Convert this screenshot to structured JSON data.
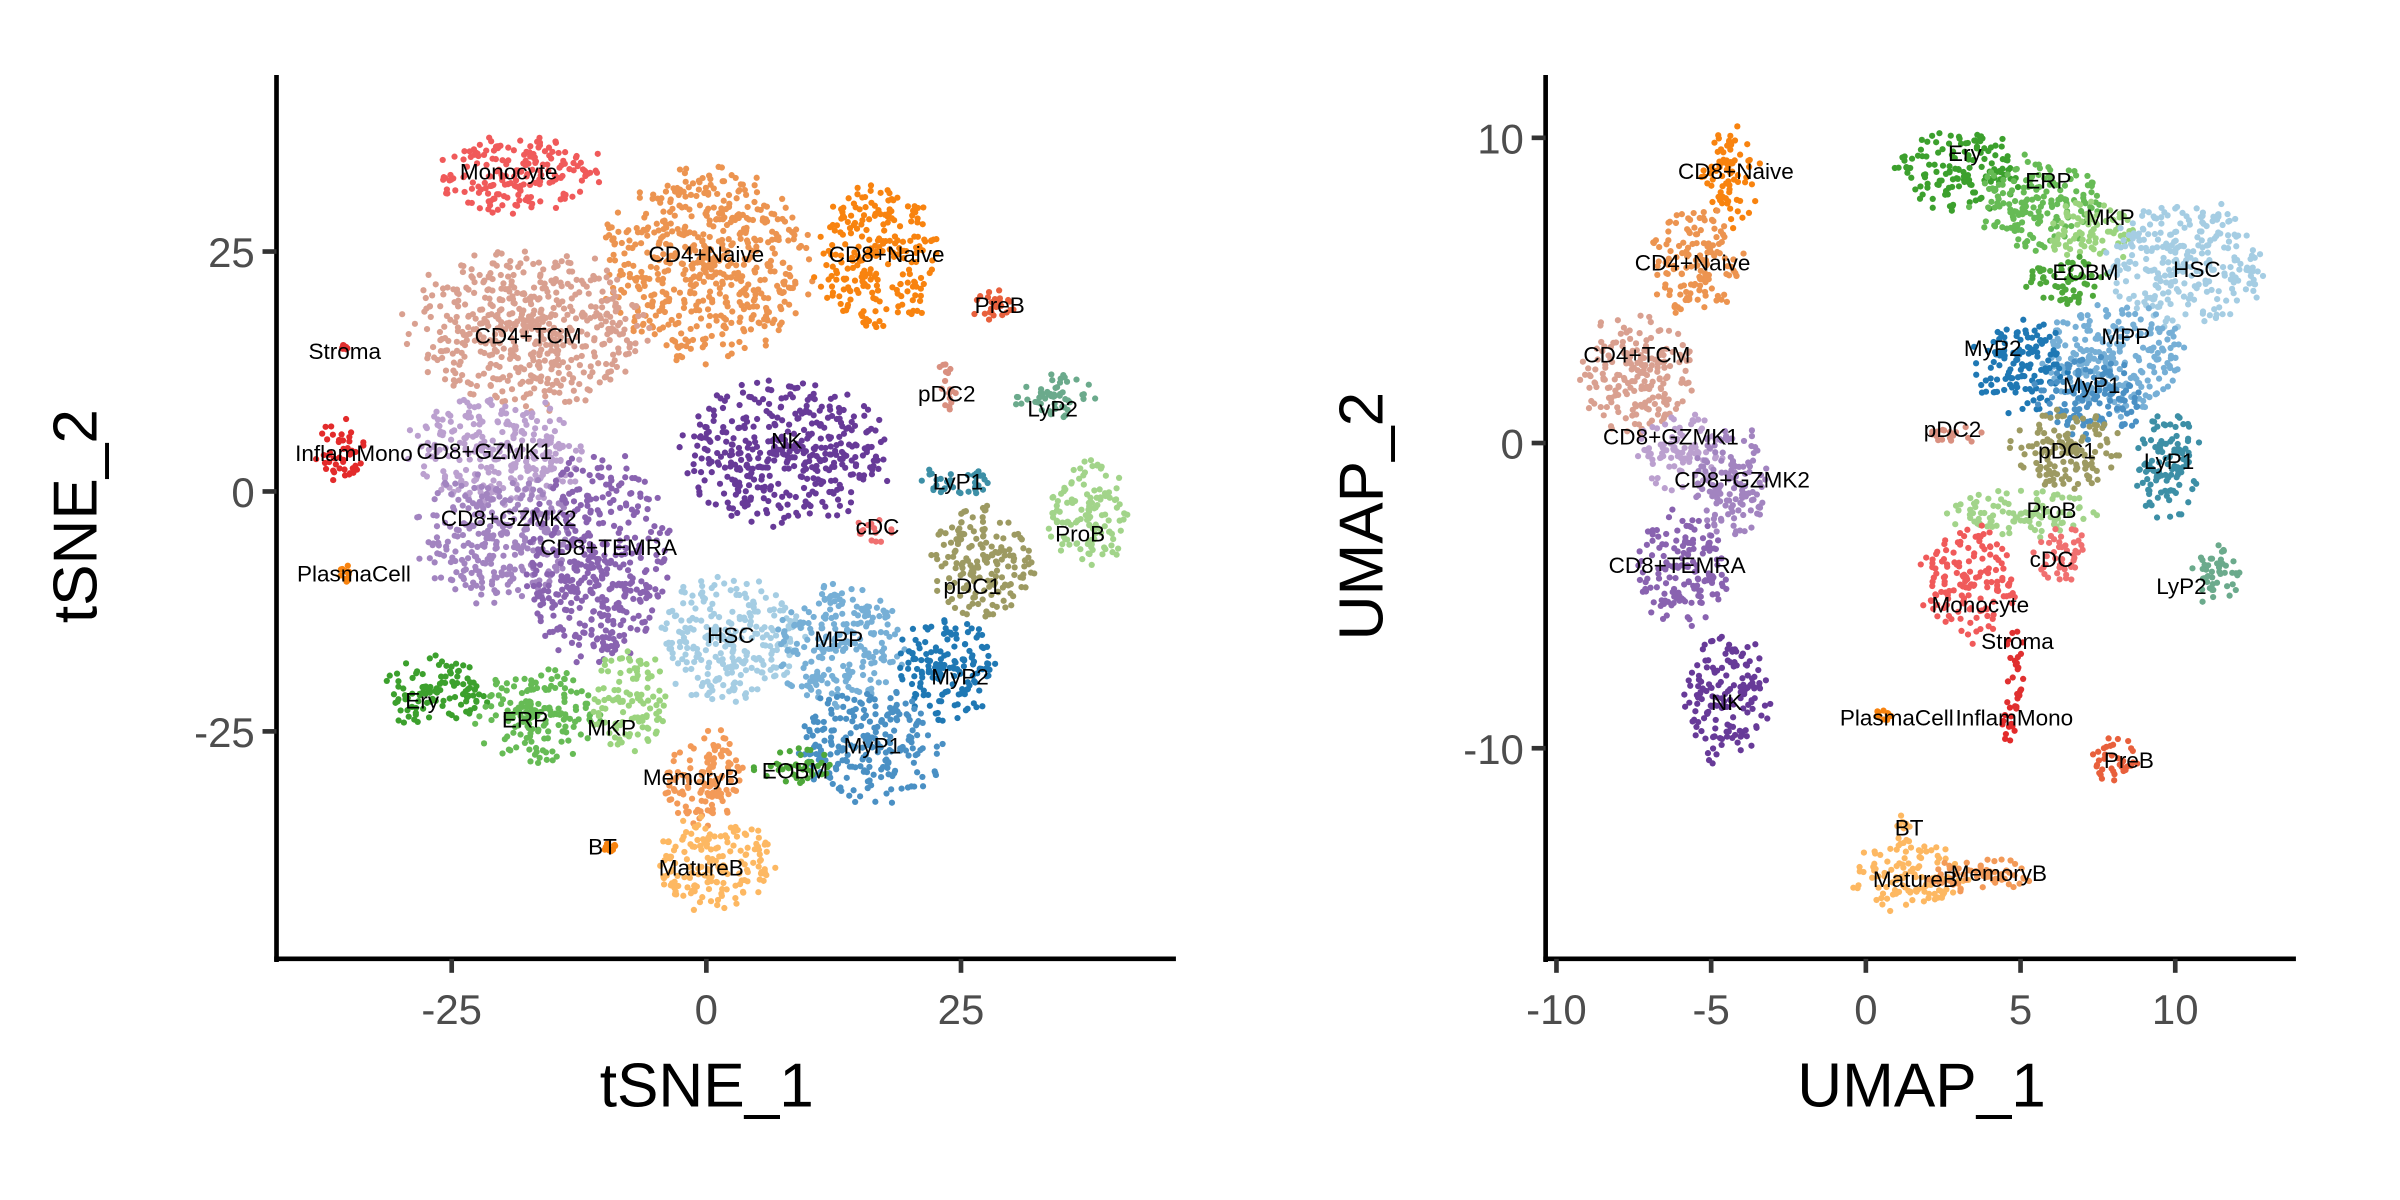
{
  "chart_data": [
    {
      "type": "scatter",
      "title": "",
      "xlabel": "tSNE_1",
      "ylabel": "tSNE_2",
      "xlim": [
        -42.2,
        46.1
      ],
      "ylim": [
        -48.7,
        43.4
      ],
      "xticks": [
        -25,
        0,
        25
      ],
      "yticks": [
        -25,
        0,
        25
      ],
      "grid": false,
      "legend": "none",
      "clusters": [
        {
          "name": "Monocyte",
          "color": "#F05A5A",
          "center": [
            -18.6,
            33
          ],
          "spread": [
            8.4,
            4
          ],
          "label": [
            -19.4,
            33.3
          ]
        },
        {
          "name": "CD4+Naive",
          "color": "#EC9450",
          "center": [
            0,
            23.6
          ],
          "spread": [
            10,
            9.7
          ],
          "label": [
            0,
            24.7
          ]
        },
        {
          "name": "CD8+Naive",
          "color": "#F8830F",
          "center": [
            16.8,
            24.4
          ],
          "spread": [
            6,
            7
          ],
          "label": [
            17.7,
            24.7
          ]
        },
        {
          "name": "CD4+TCM",
          "color": "#D9A090",
          "center": [
            -17.5,
            17
          ],
          "spread": [
            11.5,
            8
          ],
          "label": [
            -17.5,
            16.2
          ]
        },
        {
          "name": "PreB",
          "color": "#E8603C",
          "center": [
            28.2,
            19
          ],
          "spread": [
            2,
            2.4
          ],
          "label": [
            28.8,
            19.4
          ]
        },
        {
          "name": "Stroma",
          "color": "#E03030",
          "center": [
            -35.5,
            15
          ],
          "spread": [
            0.3,
            0.3
          ],
          "label": [
            -35.5,
            14.6
          ]
        },
        {
          "name": "InflamMono",
          "color": "#E32B2B",
          "center": [
            -36,
            4.5
          ],
          "spread": [
            2.3,
            3.5
          ],
          "label": [
            -34.6,
            4
          ]
        },
        {
          "name": "CD8+GZMK1",
          "color": "#BBA0CF",
          "center": [
            -20.6,
            4.2
          ],
          "spread": [
            8.4,
            5.7
          ],
          "label": [
            -21.8,
            4.2
          ]
        },
        {
          "name": "CD8+GZMK2",
          "color": "#A284C0",
          "center": [
            -20.6,
            -4.7
          ],
          "spread": [
            7.6,
            6.5
          ],
          "label": [
            -19.4,
            -2.8
          ]
        },
        {
          "name": "CD8+TEMRA",
          "color": "#8963B0",
          "center": [
            -10.7,
            -7.1
          ],
          "spread": [
            6.9,
            10.5
          ],
          "label": [
            -9.6,
            -5.8
          ]
        },
        {
          "name": "NK",
          "color": "#673A98",
          "center": [
            7.6,
            4.2
          ],
          "spread": [
            9.9,
            7.3
          ],
          "label": [
            7.9,
            5.3
          ]
        },
        {
          "name": "PlasmaCell",
          "color": "#F8830F",
          "center": [
            -35.5,
            -8.5
          ],
          "spread": [
            0.5,
            1.2
          ],
          "label": [
            -34.6,
            -8.6
          ]
        },
        {
          "name": "pDC2",
          "color": "#D99080",
          "center": [
            23.6,
            10.7
          ],
          "spread": [
            1,
            3
          ],
          "label": [
            23.6,
            10.2
          ]
        },
        {
          "name": "LyP2",
          "color": "#6BAA8C",
          "center": [
            34.3,
            9.9
          ],
          "spread": [
            3.8,
            2.4
          ],
          "label": [
            34,
            8.6
          ]
        },
        {
          "name": "LyP1",
          "color": "#3D8FA6",
          "center": [
            24.4,
            1
          ],
          "spread": [
            3.8,
            1.6
          ],
          "label": [
            24.7,
            1
          ]
        },
        {
          "name": "ProB",
          "color": "#A2D48A",
          "center": [
            37.3,
            -2.3
          ],
          "spread": [
            3.8,
            5.7
          ],
          "label": [
            36.7,
            -4.4
          ]
        },
        {
          "name": "cDC",
          "color": "#F07070",
          "center": [
            16.8,
            -3.9
          ],
          "spread": [
            2.3,
            1.3
          ],
          "label": [
            16.8,
            -3.7
          ]
        },
        {
          "name": "pDC1",
          "color": "#9D9A62",
          "center": [
            27.4,
            -7.1
          ],
          "spread": [
            5.3,
            5.7
          ],
          "label": [
            26.1,
            -9.9
          ]
        },
        {
          "name": "HSC",
          "color": "#A5CDE3",
          "center": [
            2.3,
            -15.2
          ],
          "spread": [
            6.9,
            6.5
          ],
          "label": [
            2.4,
            -15
          ]
        },
        {
          "name": "MPP",
          "color": "#76AFD6",
          "center": [
            13,
            -16
          ],
          "spread": [
            6.1,
            6.5
          ],
          "label": [
            13,
            -15.4
          ]
        },
        {
          "name": "MyP2",
          "color": "#1F78B4",
          "center": [
            23.6,
            -18.4
          ],
          "spread": [
            4.6,
            5.7
          ],
          "label": [
            24.9,
            -19.3
          ]
        },
        {
          "name": "MyP1",
          "color": "#4A90C4",
          "center": [
            16,
            -26.5
          ],
          "spread": [
            6.9,
            5.7
          ],
          "label": [
            16.3,
            -26.5
          ]
        },
        {
          "name": "EOBM",
          "color": "#4EA83A",
          "center": [
            8.4,
            -28.6
          ],
          "spread": [
            3.8,
            1.9
          ],
          "label": [
            8.7,
            -29.1
          ]
        },
        {
          "name": "Ery",
          "color": "#3CA02D",
          "center": [
            -26.7,
            -20.9
          ],
          "spread": [
            5.3,
            3.6
          ],
          "label": [
            -27.9,
            -21.8
          ]
        },
        {
          "name": "ERP",
          "color": "#66BB55",
          "center": [
            -16.8,
            -23.3
          ],
          "spread": [
            6.1,
            4.9
          ],
          "label": [
            -17.8,
            -23.8
          ]
        },
        {
          "name": "MKP",
          "color": "#9BD47E",
          "center": [
            -7.6,
            -21.7
          ],
          "spread": [
            3.8,
            4.9
          ],
          "label": [
            -9.3,
            -24.6
          ]
        },
        {
          "name": "MemoryB",
          "color": "#F39A58",
          "center": [
            0,
            -29.8
          ],
          "spread": [
            4.3,
            4.9
          ],
          "label": [
            -1.5,
            -29.8
          ]
        },
        {
          "name": "MatureB",
          "color": "#FDB862",
          "center": [
            0.8,
            -38.7
          ],
          "spread": [
            6.1,
            4.9
          ],
          "label": [
            -0.5,
            -39.2
          ]
        },
        {
          "name": "BT",
          "color": "#F8830F",
          "center": [
            -9.5,
            -37
          ],
          "spread": [
            0.6,
            0.6
          ],
          "label": [
            -10.2,
            -37
          ]
        }
      ]
    },
    {
      "type": "scatter",
      "title": "",
      "xlabel": "UMAP_1",
      "ylabel": "UMAP_2",
      "xlim": [
        -10.35,
        13.9
      ],
      "ylim": [
        -16.9,
        12.06
      ],
      "xticks": [
        -10,
        -5,
        0,
        5,
        10
      ],
      "yticks": [
        -10,
        0,
        10
      ],
      "grid": false,
      "legend": "none",
      "clusters": [
        {
          "name": "CD8+Naive",
          "color": "#F8830F",
          "center": [
            -4.4,
            8.7
          ],
          "spread": [
            0.9,
            1.6
          ],
          "label": [
            -4.2,
            8.9
          ]
        },
        {
          "name": "CD4+Naive",
          "color": "#EC9450",
          "center": [
            -5.5,
            5.9
          ],
          "spread": [
            1.4,
            1.8
          ],
          "label": [
            -5.6,
            5.9
          ]
        },
        {
          "name": "CD4+TCM",
          "color": "#D9A090",
          "center": [
            -7.3,
            2.3
          ],
          "spread": [
            1.8,
            2.0
          ],
          "label": [
            -7.4,
            2.9
          ]
        },
        {
          "name": "CD8+GZMK1",
          "color": "#BBA0CF",
          "center": [
            -6,
            -0.25
          ],
          "spread": [
            1.3,
            1.3
          ],
          "label": [
            -6.3,
            0.2
          ]
        },
        {
          "name": "CD8+GZMK2",
          "color": "#A284C0",
          "center": [
            -4.3,
            -1.3
          ],
          "spread": [
            1.3,
            1.8
          ],
          "label": [
            -4,
            -1.2
          ]
        },
        {
          "name": "CD8+TEMRA",
          "color": "#8963B0",
          "center": [
            -6,
            -4.1
          ],
          "spread": [
            1.5,
            1.8
          ],
          "label": [
            -6.1,
            -4
          ]
        },
        {
          "name": "NK",
          "color": "#673A98",
          "center": [
            -4.5,
            -8.4
          ],
          "spread": [
            1.4,
            2.0
          ],
          "label": [
            -4.5,
            -8.5
          ]
        },
        {
          "name": "Ery",
          "color": "#3CA02D",
          "center": [
            3,
            8.9
          ],
          "spread": [
            2.0,
            1.3
          ],
          "label": [
            3.2,
            9.5
          ]
        },
        {
          "name": "ERP",
          "color": "#66BB55",
          "center": [
            5.5,
            7.9
          ],
          "spread": [
            2.0,
            1.5
          ],
          "label": [
            5.9,
            8.6
          ]
        },
        {
          "name": "MKP",
          "color": "#9BD47E",
          "center": [
            7.3,
            6.9
          ],
          "spread": [
            1.5,
            1.0
          ],
          "label": [
            7.9,
            7.4
          ]
        },
        {
          "name": "EOBM",
          "color": "#4EA83A",
          "center": [
            6.5,
            5.3
          ],
          "spread": [
            1.3,
            0.8
          ],
          "label": [
            7.1,
            5.6
          ]
        },
        {
          "name": "HSC",
          "color": "#A5CDE3",
          "center": [
            10.3,
            5.9
          ],
          "spread": [
            2.5,
            2.0
          ],
          "label": [
            10.7,
            5.7
          ]
        },
        {
          "name": "MPP",
          "color": "#76AFD6",
          "center": [
            8,
            2.8
          ],
          "spread": [
            2.3,
            1.8
          ],
          "label": [
            8.4,
            3.5
          ]
        },
        {
          "name": "MyP2",
          "color": "#1F78B4",
          "center": [
            5,
            2.5
          ],
          "spread": [
            1.5,
            1.5
          ],
          "label": [
            4.1,
            3.1
          ]
        },
        {
          "name": "MyP1",
          "color": "#4A90C4",
          "center": [
            7.3,
            1.5
          ],
          "spread": [
            1.8,
            1.3
          ],
          "label": [
            7.3,
            1.9
          ]
        },
        {
          "name": "pDC1",
          "color": "#9D9A62",
          "center": [
            6.5,
            -0.25
          ],
          "spread": [
            1.8,
            1.3
          ],
          "label": [
            6.5,
            -0.25
          ]
        },
        {
          "name": "pDC2",
          "color": "#D99080",
          "center": [
            3,
            0.25
          ],
          "spread": [
            1.0,
            0.3
          ],
          "label": [
            2.8,
            0.45
          ]
        },
        {
          "name": "LyP1",
          "color": "#3D8FA6",
          "center": [
            9.8,
            -0.8
          ],
          "spread": [
            1.0,
            2.0
          ],
          "label": [
            9.8,
            -0.6
          ]
        },
        {
          "name": "ProB",
          "color": "#A2D48A",
          "center": [
            5,
            -2.3
          ],
          "spread": [
            2.3,
            0.8
          ],
          "label": [
            6,
            -2.2
          ]
        },
        {
          "name": "LyP2",
          "color": "#6BAA8C",
          "center": [
            11.3,
            -4.3
          ],
          "spread": [
            0.8,
            1.0
          ],
          "label": [
            10.2,
            -4.7
          ]
        },
        {
          "name": "cDC",
          "color": "#F07070",
          "center": [
            6.3,
            -3.6
          ],
          "spread": [
            0.8,
            1.0
          ],
          "label": [
            6,
            -3.8
          ]
        },
        {
          "name": "Monocyte",
          "color": "#F05A5A",
          "center": [
            3.3,
            -4.6
          ],
          "spread": [
            1.5,
            1.8
          ],
          "label": [
            3.7,
            -5.3
          ]
        },
        {
          "name": "Stroma",
          "color": "#E03030",
          "center": [
            4.8,
            -7.4
          ],
          "spread": [
            0.3,
            1.5
          ],
          "label": [
            4.9,
            -6.5
          ]
        },
        {
          "name": "InflamMono",
          "color": "#E32B2B",
          "center": [
            4.7,
            -9.2
          ],
          "spread": [
            0.3,
            0.6
          ],
          "label": [
            4.8,
            -9
          ]
        },
        {
          "name": "PlasmaCell",
          "color": "#F8830F",
          "center": [
            0.6,
            -8.9
          ],
          "spread": [
            0.3,
            0.2
          ],
          "label": [
            1,
            -9
          ]
        },
        {
          "name": "PreB",
          "color": "#E8603C",
          "center": [
            8,
            -10.4
          ],
          "spread": [
            0.8,
            0.8
          ],
          "label": [
            8.5,
            -10.4
          ]
        },
        {
          "name": "BT",
          "color": "#FDB862",
          "center": [
            1.2,
            -12.6
          ],
          "spread": [
            0.25,
            0.6
          ],
          "label": [
            1.4,
            -12.6
          ]
        },
        {
          "name": "MatureB",
          "color": "#FDB862",
          "center": [
            1.4,
            -14.2
          ],
          "spread": [
            1.8,
            1.1
          ],
          "label": [
            1.6,
            -14.3
          ]
        },
        {
          "name": "MemoryB",
          "color": "#F39A58",
          "center": [
            3.5,
            -14.1
          ],
          "spread": [
            1.8,
            0.6
          ],
          "label": [
            4.3,
            -14.1
          ]
        }
      ]
    }
  ]
}
